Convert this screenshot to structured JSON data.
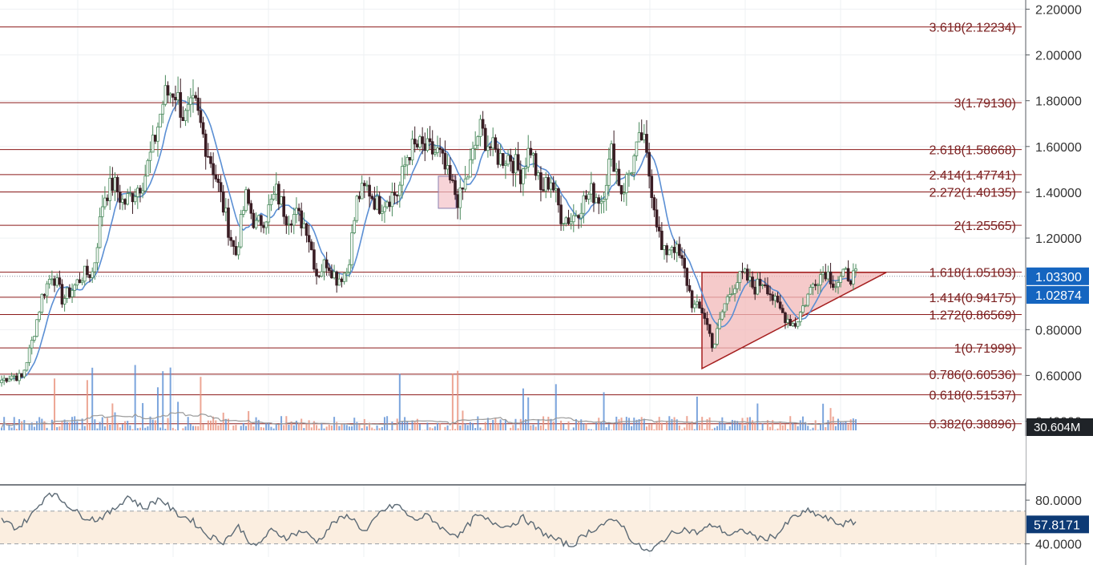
{
  "colors": {
    "up": "#4a8a5c",
    "up_fill": "#ffffff",
    "down": "#3a1d24",
    "fib": "#8b1a1a",
    "fib_text": "#7a1f1f",
    "ma": "#5b8fd4",
    "triangle_fill": "#f2b8b8",
    "triangle_stroke": "#a51f1f",
    "vol_up": "#5b8fd4",
    "vol_down": "#e8907a",
    "vol_ma": "#9a9a9a",
    "rsi_line": "#5c6a75",
    "rsi_band": "#fbeee0",
    "price_tag": "#1565c0",
    "price_tag_dark": "#0d3a75",
    "axis_text": "#333333"
  },
  "chart_data": [
    {
      "type": "candlestick",
      "title": "",
      "ylabel": "",
      "ylim": [
        0.36,
        2.24
      ],
      "y_scale": "linear",
      "grid": true,
      "y_ticks": [
        "2.20000",
        "2.00000",
        "1.80000",
        "1.60000",
        "1.40000",
        "1.20000",
        "0.80000",
        "0.60000",
        "0.40000"
      ],
      "y_tick_values": [
        2.2,
        2.0,
        1.8,
        1.6,
        1.4,
        1.2,
        0.8,
        0.6,
        0.4
      ],
      "fib_levels": [
        {
          "label": "3.618(2.12234)",
          "value": 2.12234
        },
        {
          "label": "3(1.79130)",
          "value": 1.7913
        },
        {
          "label": "2.618(1.58668)",
          "value": 1.58668
        },
        {
          "label": "2.414(1.47741)",
          "value": 1.47741
        },
        {
          "label": "2.272(1.40135)",
          "value": 1.40135
        },
        {
          "label": "2(1.25565)",
          "value": 1.25565
        },
        {
          "label": "1.618(1.05103)",
          "value": 1.05103
        },
        {
          "label": "1.414(0.94175)",
          "value": 0.94175
        },
        {
          "label": "1.272(0.86569)",
          "value": 0.86569
        },
        {
          "label": "1(0.71999)",
          "value": 0.71999
        },
        {
          "label": "0.786(0.60536)",
          "value": 0.60536
        },
        {
          "label": "0.618(0.51537)",
          "value": 0.51537
        },
        {
          "label": "0.382(0.38896)",
          "value": 0.38896
        }
      ],
      "price_tags": [
        {
          "label": "1.03300",
          "value": 1.033
        },
        {
          "label": "1.02874",
          "value": 1.02874
        }
      ],
      "volume_tag": "30.604M",
      "triangle": {
        "top_left": 1.05,
        "bottom_left": 0.63,
        "apex": 1.05
      },
      "highlight_box": {
        "top": 1.47,
        "bottom": 1.33
      },
      "close_anchors": [
        0.58,
        0.6,
        0.59,
        0.75,
        0.95,
        1.05,
        0.93,
        0.98,
        1.04,
        1.05,
        1.38,
        1.44,
        1.35,
        1.4,
        1.46,
        1.62,
        1.82,
        1.85,
        1.72,
        1.78,
        1.62,
        1.48,
        1.3,
        1.12,
        1.38,
        1.25,
        1.3,
        1.4,
        1.3,
        1.3,
        1.25,
        1.04,
        1.1,
        1.02,
        1.06,
        1.38,
        1.42,
        1.34,
        1.38,
        1.4,
        1.58,
        1.6,
        1.58,
        1.57,
        1.45,
        1.36,
        1.5,
        1.68,
        1.6,
        1.55,
        1.56,
        1.48,
        1.6,
        1.4,
        1.46,
        1.3,
        1.28,
        1.35,
        1.4,
        1.37,
        1.58,
        1.4,
        1.52,
        1.65,
        1.4,
        1.12,
        1.18,
        1.08,
        0.9,
        0.88,
        0.72,
        0.9,
        1.0,
        1.04,
        0.98,
        1.02,
        0.92,
        0.86,
        0.82,
        0.92,
        1.02,
        1.06,
        1.0,
        1.04,
        1.03
      ],
      "candles_count": 340,
      "ma_period": 9
    },
    {
      "type": "line",
      "title": "",
      "ylim": [
        28,
        94
      ],
      "y_ticks": [
        "80.0000",
        "40.0000"
      ],
      "y_tick_values": [
        80,
        40
      ],
      "band": [
        40,
        70
      ],
      "current_label": "57.8171",
      "current_value": 57.8171,
      "rsi_anchors": [
        62,
        54,
        68,
        88,
        78,
        66,
        62,
        70,
        84,
        72,
        82,
        68,
        62,
        48,
        42,
        56,
        36,
        52,
        46,
        52,
        42,
        60,
        66,
        50,
        70,
        76,
        62,
        66,
        52,
        48,
        66,
        60,
        56,
        64,
        52,
        44,
        38,
        50,
        58,
        62,
        40,
        32,
        46,
        54,
        50,
        58,
        48,
        52,
        44,
        48,
        64,
        70,
        64,
        58,
        60
      ]
    }
  ]
}
